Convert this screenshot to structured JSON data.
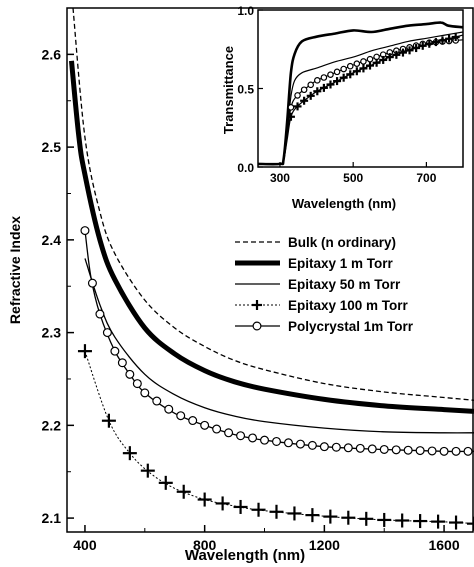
{
  "chart_data": [
    {
      "type": "line",
      "xlabel": "Wavelength (nm)",
      "ylabel": "Refractive Index",
      "xlim": [
        340,
        1700
      ],
      "ylim": [
        2.085,
        2.65
      ],
      "xticks": [
        400,
        800,
        1200,
        1600
      ],
      "yticks": [
        2.1,
        2.2,
        2.3,
        2.4,
        2.5,
        2.6
      ],
      "legend_position": "right-middle",
      "series": [
        {
          "name": "Bulk (n ordinary)",
          "style": "dashed",
          "color": "#000000",
          "x": [
            360,
            400,
            450,
            500,
            600,
            700,
            800,
            900,
            1000,
            1200,
            1400,
            1600,
            1700
          ],
          "y": [
            2.65,
            2.51,
            2.43,
            2.385,
            2.335,
            2.305,
            2.285,
            2.27,
            2.26,
            2.245,
            2.236,
            2.23,
            2.227
          ]
        },
        {
          "name": "Epitaxy 1 m Torr",
          "style": "thick",
          "color": "#000000",
          "x": [
            355,
            380,
            400,
            450,
            500,
            600,
            700,
            800,
            900,
            1000,
            1200,
            1400,
            1600,
            1700
          ],
          "y": [
            2.593,
            2.51,
            2.47,
            2.4,
            2.357,
            2.305,
            2.277,
            2.259,
            2.247,
            2.239,
            2.228,
            2.221,
            2.217,
            2.215
          ]
        },
        {
          "name": "Epitaxy 50 m Torr",
          "style": "thin",
          "color": "#000000",
          "x": [
            400,
            450,
            500,
            600,
            700,
            800,
            900,
            1000,
            1200,
            1400,
            1600,
            1700
          ],
          "y": [
            2.38,
            2.33,
            2.295,
            2.255,
            2.233,
            2.219,
            2.21,
            2.204,
            2.197,
            2.193,
            2.192,
            2.192
          ]
        },
        {
          "name": "Epitaxy 100 m Torr",
          "style": "cross-markers",
          "color": "#000000",
          "x": [
            400,
            480,
            550,
            620,
            700,
            800,
            900,
            1000,
            1200,
            1400,
            1600,
            1700
          ],
          "y": [
            2.28,
            2.205,
            2.17,
            2.148,
            2.132,
            2.12,
            2.113,
            2.108,
            2.102,
            2.098,
            2.096,
            2.094
          ]
        },
        {
          "name": "Polycrystal 1m Torr",
          "style": "circle-markers",
          "color": "#000000",
          "x": [
            400,
            420,
            450,
            500,
            550,
            600,
            700,
            800,
            900,
            1000,
            1200,
            1400,
            1600,
            1700
          ],
          "y": [
            2.41,
            2.36,
            2.32,
            2.28,
            2.255,
            2.235,
            2.213,
            2.2,
            2.19,
            2.184,
            2.177,
            2.174,
            2.172,
            2.172
          ]
        }
      ]
    },
    {
      "type": "line",
      "inset": true,
      "xlabel": "Wavelength (nm)",
      "ylabel": "Transmittance",
      "xlim": [
        240,
        800
      ],
      "ylim": [
        0,
        1.0
      ],
      "xticks": [
        300,
        500,
        700
      ],
      "yticks": [
        0.0,
        0.5,
        1.0
      ],
      "xtick_labels": [
        "300",
        "500",
        "700"
      ],
      "ytick_labels": [
        "0.0",
        "0.5",
        "1.0"
      ],
      "series": [
        {
          "style": "thick",
          "color": "#000000",
          "x": [
            240,
            300,
            310,
            320,
            330,
            340,
            360,
            400,
            450,
            500,
            550,
            600,
            650,
            700,
            740,
            760,
            800
          ],
          "y": [
            0.02,
            0.02,
            0.05,
            0.3,
            0.6,
            0.72,
            0.8,
            0.83,
            0.85,
            0.87,
            0.86,
            0.88,
            0.9,
            0.91,
            0.92,
            0.9,
            0.89
          ]
        },
        {
          "style": "thin",
          "color": "#000000",
          "x": [
            240,
            300,
            310,
            320,
            330,
            340,
            360,
            400,
            450,
            500,
            550,
            600,
            650,
            700,
            750,
            800
          ],
          "y": [
            0.02,
            0.02,
            0.04,
            0.22,
            0.45,
            0.55,
            0.6,
            0.63,
            0.67,
            0.7,
            0.74,
            0.77,
            0.8,
            0.82,
            0.84,
            0.86
          ]
        },
        {
          "style": "circle-markers",
          "color": "#000000",
          "x": [
            240,
            300,
            310,
            320,
            330,
            345,
            370,
            400,
            450,
            500,
            550,
            600,
            650,
            700,
            750,
            800
          ],
          "y": [
            0.02,
            0.02,
            0.04,
            0.2,
            0.38,
            0.45,
            0.5,
            0.55,
            0.6,
            0.65,
            0.69,
            0.73,
            0.76,
            0.79,
            0.8,
            0.81
          ]
        },
        {
          "style": "cross-markers",
          "color": "#000000",
          "x": [
            240,
            300,
            310,
            320,
            330,
            345,
            370,
            400,
            450,
            500,
            550,
            600,
            650,
            700,
            750,
            800
          ],
          "y": [
            0.02,
            0.02,
            0.04,
            0.18,
            0.32,
            0.38,
            0.43,
            0.48,
            0.54,
            0.6,
            0.65,
            0.7,
            0.74,
            0.78,
            0.81,
            0.84
          ]
        }
      ]
    }
  ]
}
